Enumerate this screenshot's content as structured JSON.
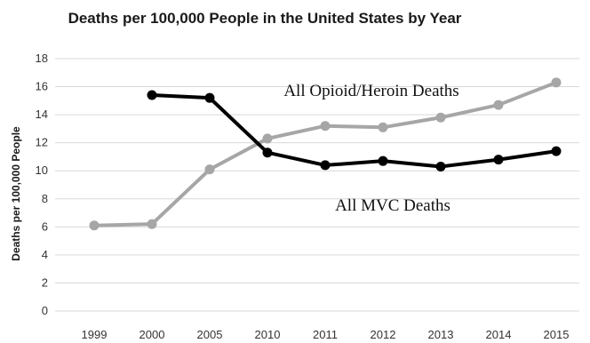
{
  "chart_data": {
    "type": "line",
    "title": "Deaths per 100,000 People in the United States by Year",
    "xlabel": "",
    "ylabel": "Deaths per 100,000 People",
    "categories": [
      "1999",
      "2000",
      "2005",
      "2010",
      "2011",
      "2012",
      "2013",
      "2014",
      "2015"
    ],
    "yticks": [
      "0",
      "2",
      "4",
      "6",
      "8",
      "10",
      "12",
      "14",
      "16",
      "18"
    ],
    "ylim": [
      0,
      18
    ],
    "grid": true,
    "series": [
      {
        "name": "All Opioid/Heroin Deaths",
        "color": "#a6a6a6",
        "values": [
          6.1,
          6.2,
          10.1,
          12.3,
          13.2,
          13.1,
          13.8,
          14.7,
          16.3
        ]
      },
      {
        "name": "All MVC Deaths",
        "color": "#000000",
        "values": [
          null,
          15.4,
          15.2,
          11.3,
          10.4,
          10.7,
          10.3,
          10.8,
          11.4
        ]
      }
    ]
  }
}
